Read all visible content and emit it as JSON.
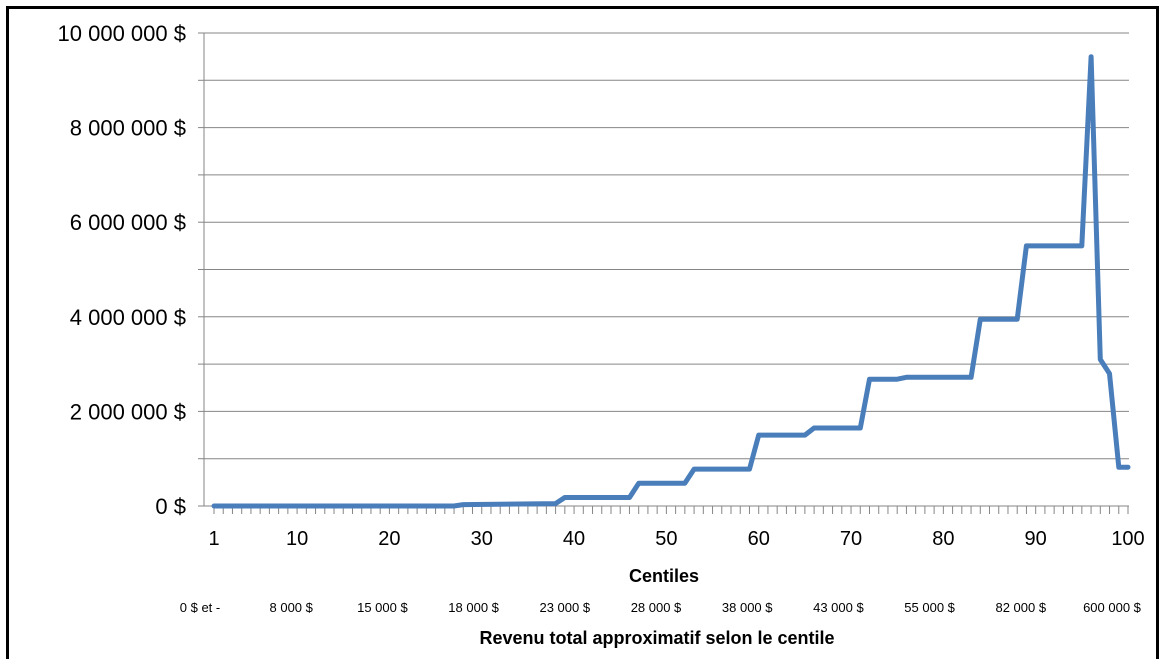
{
  "chart_data": {
    "type": "line",
    "xlabel": "Centiles",
    "ylabel": "",
    "title": "",
    "ylim": [
      0,
      10000000
    ],
    "yticks": [
      {
        "value": 0,
        "label": "0 $"
      },
      {
        "value": 2000000,
        "label": "2 000 000 $"
      },
      {
        "value": 4000000,
        "label": "4 000 000 $"
      },
      {
        "value": 6000000,
        "label": "6 000 000 $"
      },
      {
        "value": 8000000,
        "label": "8 000 000 $"
      },
      {
        "value": 10000000,
        "label": "10 000 000 $"
      }
    ],
    "xlim": [
      1,
      100
    ],
    "xticks": [
      1,
      10,
      20,
      30,
      40,
      50,
      60,
      70,
      80,
      90,
      100
    ],
    "grid": "horizontal",
    "series_color": "#4a7ebb",
    "series": [
      {
        "x": [
          1,
          27,
          28,
          38,
          39,
          46,
          47,
          52,
          53,
          59,
          60,
          65,
          66,
          71,
          72,
          75,
          76,
          83,
          84,
          88,
          89,
          95,
          96,
          97,
          98,
          99,
          100
        ],
        "values": [
          0,
          0,
          30000,
          50000,
          180000,
          180000,
          480000,
          480000,
          780000,
          780000,
          1500000,
          1500000,
          1650000,
          1650000,
          2680000,
          2680000,
          2720000,
          2720000,
          3950000,
          3950000,
          5500000,
          5500000,
          9500000,
          3100000,
          2800000,
          820000,
          820000
        ]
      }
    ],
    "secondary_axis": {
      "title": "Revenu total approximatif selon le centile",
      "labels": [
        "0 $ et -",
        "8 000 $",
        "15 000 $",
        "18 000 $",
        "23 000 $",
        "28 000 $",
        "38 000 $",
        "43 000 $",
        "55 000 $",
        "82 000 $",
        "600 000 $"
      ]
    }
  }
}
